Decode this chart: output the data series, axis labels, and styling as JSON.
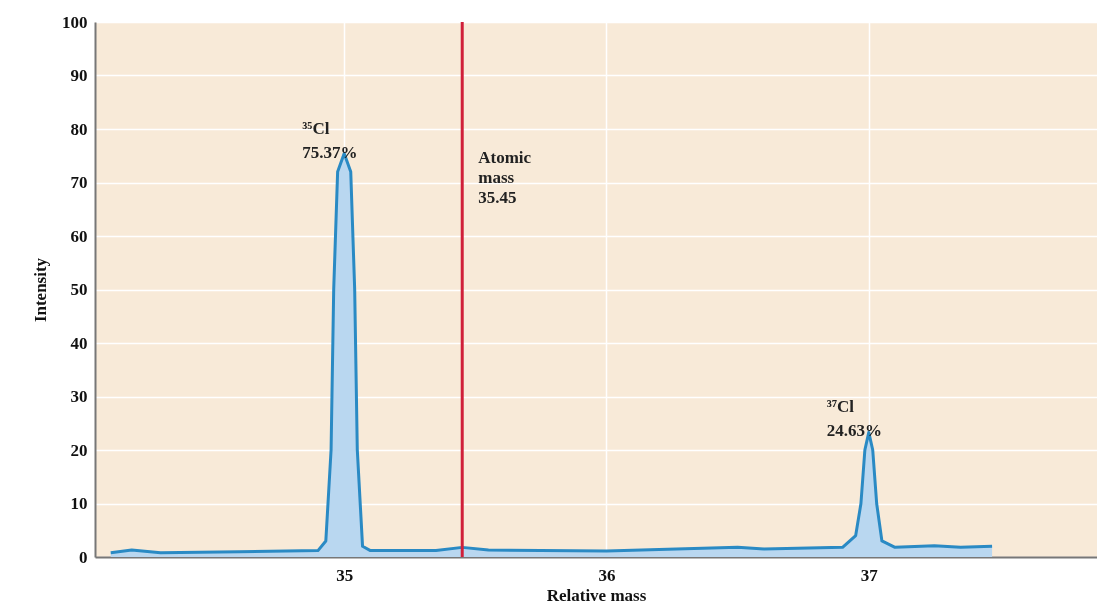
{
  "chart_data": {
    "type": "area",
    "xlabel": "Relative mass",
    "ylabel": "Intensity",
    "x": [
      34.11,
      34.19,
      34.3,
      34.6,
      34.9,
      34.93,
      34.95,
      34.96,
      34.975,
      35.0,
      35.025,
      35.04,
      35.05,
      35.07,
      35.1,
      35.35,
      35.45,
      35.55,
      36.0,
      36.5,
      36.6,
      36.9,
      36.95,
      36.97,
      36.985,
      37.0,
      37.015,
      37.03,
      37.05,
      37.1,
      37.25,
      37.35,
      37.47
    ],
    "series": [
      {
        "color": "#2a8ac4",
        "values": [
          0.8,
          1.3,
          0.8,
          1.0,
          1.2,
          3,
          20,
          50,
          72,
          75.4,
          72,
          50,
          20,
          2,
          1.2,
          1.2,
          1.8,
          1.3,
          1.1,
          1.8,
          1.5,
          1.8,
          4,
          10,
          20,
          23.3,
          20,
          10,
          3,
          1.8,
          2.1,
          1.8,
          2.0
        ]
      }
    ],
    "xlim": [
      34.05,
      37.87
    ],
    "xticks": [
      35,
      36,
      37
    ],
    "ylim": [
      0,
      100
    ],
    "yticks": [
      0,
      10,
      20,
      30,
      40,
      50,
      60,
      70,
      80,
      90,
      100
    ],
    "grid": true,
    "ref_lines": [
      {
        "axis": "x",
        "value": 35.45,
        "label": "Atomic\nmass\n35.45",
        "color": "#d0203a"
      }
    ],
    "annotations": [
      {
        "text": "³⁵Cl\n75.37%",
        "x": 35.0,
        "y": 75.4
      },
      {
        "text": "³⁷Cl\n24.63%",
        "x": 37.0,
        "y": 23.3
      }
    ]
  }
}
